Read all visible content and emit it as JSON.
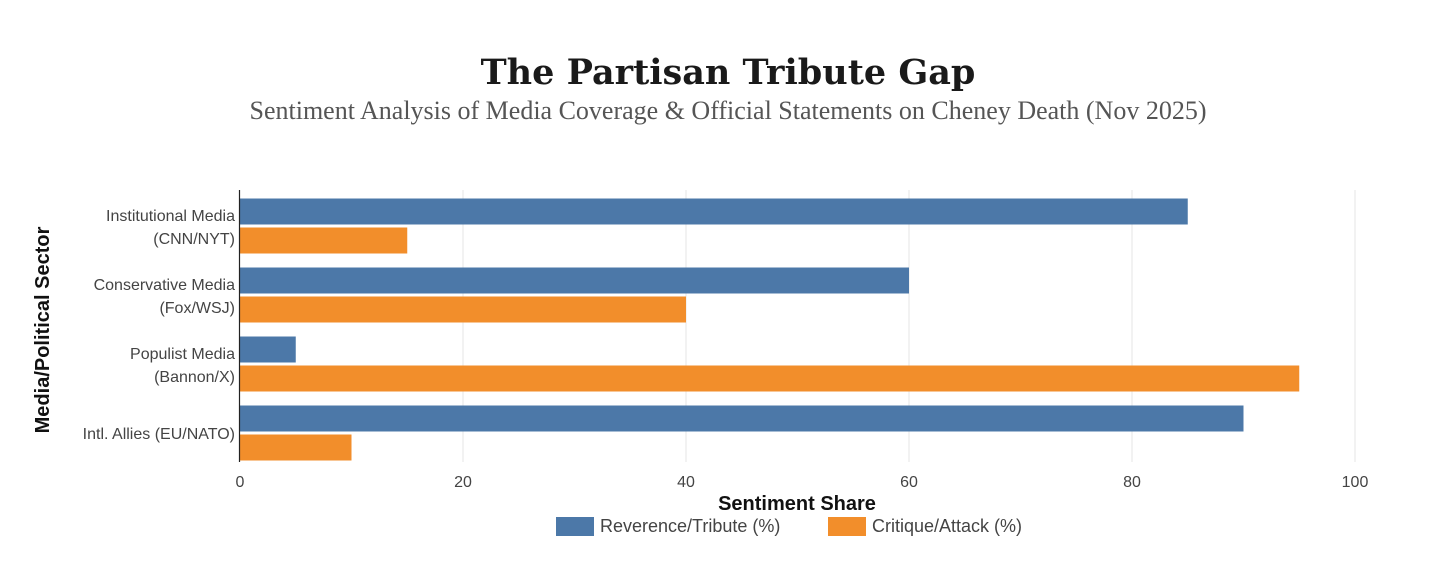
{
  "chart_data": {
    "type": "bar",
    "orientation": "horizontal",
    "title": "The Partisan Tribute Gap",
    "subtitle": "Sentiment Analysis of Media Coverage & Official Statements on Cheney Death (Nov 2025)",
    "xlabel": "Sentiment Share",
    "ylabel": "Media/Political Sector",
    "xlim": [
      0,
      100
    ],
    "xticks": [
      0,
      20,
      40,
      60,
      80,
      100
    ],
    "grid": true,
    "legend_position": "bottom-center",
    "categories": [
      [
        "Institutional Media",
        "(CNN/NYT)"
      ],
      [
        "Conservative Media",
        "(Fox/WSJ)"
      ],
      [
        "Populist Media",
        "(Bannon/X)"
      ],
      [
        "Intl. Allies (EU/NATO)"
      ]
    ],
    "series": [
      {
        "name": "Reverence/Tribute (%)",
        "color": "#4c78a8",
        "values": [
          85,
          60,
          5,
          90
        ]
      },
      {
        "name": "Critique/Attack (%)",
        "color": "#f28e2b",
        "values": [
          15,
          40,
          95,
          10
        ]
      }
    ]
  }
}
